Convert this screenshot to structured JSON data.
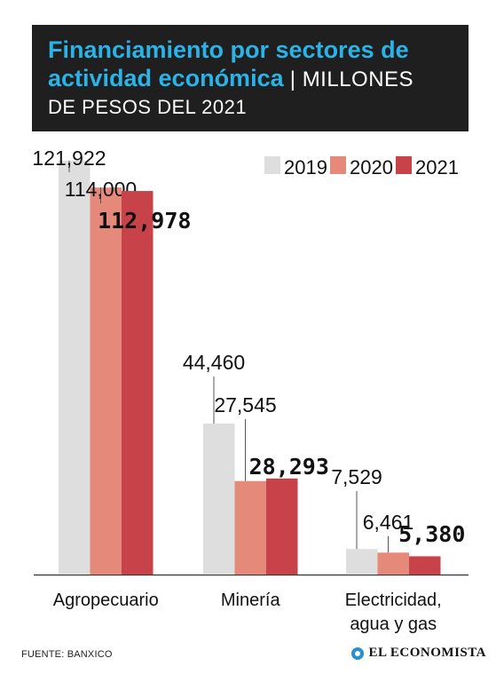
{
  "header": {
    "title_line1": "Financiamiento por sectores de",
    "title_line2": "actividad económica",
    "separator": " | ",
    "unit_line1": "MILLONES",
    "unit_line2": "DE PESOS DEL 2021"
  },
  "colors": {
    "header_bg": "#1f1f1f",
    "title": "#2bb3e8",
    "s2019": "#dedede",
    "s2020": "#e58a7b",
    "s2021": "#c8424a"
  },
  "chart_data": {
    "type": "bar",
    "title": "Financiamiento por sectores de actividad económica",
    "categories": [
      "Agropecuario",
      "Minería",
      "Electricidad,\nagua y gas"
    ],
    "series": [
      {
        "name": "2019",
        "values": [
          121922,
          44460,
          7529
        ],
        "labels": [
          "121,922",
          "44,460",
          "7,529"
        ]
      },
      {
        "name": "2020",
        "values": [
          114000,
          27545,
          6461
        ],
        "labels": [
          "114,000",
          "27,545",
          "6,461"
        ]
      },
      {
        "name": "2021",
        "values": [
          112978,
          28293,
          5380
        ],
        "labels": [
          "112,978",
          "28,293",
          "5,380"
        ]
      }
    ],
    "ylim": [
      0,
      130000
    ],
    "legend": "top-right",
    "grid": false
  },
  "footer": {
    "source": "FUENTE: BANXICO",
    "brand": "EL ECONOMISTA"
  }
}
